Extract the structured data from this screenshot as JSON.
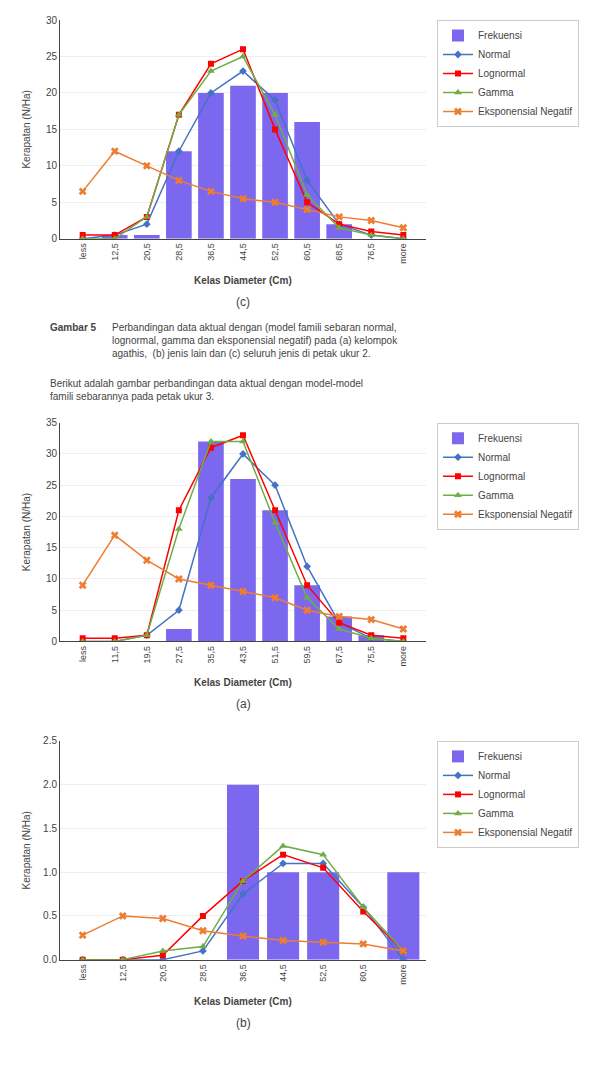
{
  "chart_data": [
    {
      "type": "bar",
      "title": "(c)",
      "xlabel": "Kelas Diameter (Cm)",
      "ylabel": "Kerapatan (N/Ha)",
      "categories": [
        "less",
        "12,5",
        "20,5",
        "28,5",
        "36,5",
        "44,5",
        "52,5",
        "60,5",
        "68,5",
        "76,5",
        "more"
      ],
      "series": [
        {
          "name": "Frekuensi",
          "type": "bar",
          "color": "#7B68EE",
          "values": [
            0,
            0.5,
            0.5,
            12,
            20,
            21,
            20,
            16,
            2,
            0,
            0
          ]
        },
        {
          "name": "Normal",
          "type": "line",
          "color": "#4472C4",
          "marker": "diamond",
          "values": [
            0,
            0.5,
            2,
            12,
            20,
            23,
            19,
            8,
            2,
            0.5,
            0
          ]
        },
        {
          "name": "Lognormal",
          "type": "line",
          "color": "#FF0000",
          "marker": "square",
          "values": [
            0.5,
            0.5,
            3,
            17,
            24,
            26,
            15,
            5,
            2,
            1,
            0.5
          ]
        },
        {
          "name": "Gamma",
          "type": "line",
          "color": "#70AD47",
          "marker": "triangle",
          "values": [
            0,
            0,
            3,
            17,
            23,
            25,
            17,
            6,
            1.5,
            0.5,
            0
          ]
        },
        {
          "name": "Eksponensial Negatif",
          "type": "line",
          "color": "#ED7D31",
          "marker": "x",
          "values": [
            6.5,
            12,
            10,
            8,
            6.5,
            5.5,
            5,
            4,
            3,
            2.5,
            1.5
          ]
        }
      ],
      "ylim": [
        0,
        30
      ],
      "yticks": [
        0,
        5,
        10,
        15,
        20,
        25,
        30
      ],
      "grid": "y",
      "legend": "right",
      "annotations": [
        "Gambar 5",
        "Perbandingan data aktual dengan (model famili sebaran normal,\nlognormal, gamma dan eksponensial negatif) pada (a) kelompok\nagathis,  (b) jenis lain dan (c) seluruh jenis di petak ukur 2.",
        "Berikut adalah gambar perbandingan data aktual dengan model-model\nfamili sebarannya pada petak ukur 3."
      ]
    },
    {
      "type": "bar",
      "title": "(a)",
      "xlabel": "Kelas Diameter (Cm)",
      "ylabel": "Kerapatan (N/Ha)",
      "categories": [
        "less",
        "11,5",
        "19,5",
        "27,5",
        "35,5",
        "43,5",
        "51,5",
        "59,5",
        "67,5",
        "75,5",
        "more"
      ],
      "series": [
        {
          "name": "Frekuensi",
          "type": "bar",
          "color": "#7B68EE",
          "values": [
            0,
            0,
            0,
            2,
            32,
            26,
            21,
            9,
            4,
            1,
            0
          ]
        },
        {
          "name": "Normal",
          "type": "line",
          "color": "#4472C4",
          "marker": "diamond",
          "values": [
            0,
            0,
            1,
            5,
            23,
            30,
            25,
            12,
            3,
            0.5,
            0
          ]
        },
        {
          "name": "Lognormal",
          "type": "line",
          "color": "#FF0000",
          "marker": "square",
          "values": [
            0.5,
            0.5,
            1,
            21,
            31,
            33,
            21,
            9,
            3,
            1,
            0.5
          ]
        },
        {
          "name": "Gamma",
          "type": "line",
          "color": "#70AD47",
          "marker": "triangle",
          "values": [
            0,
            0,
            1,
            18,
            32,
            32,
            19,
            7,
            2,
            0.5,
            0
          ]
        },
        {
          "name": "Eksponensial Negatif",
          "type": "line",
          "color": "#ED7D31",
          "marker": "x",
          "values": [
            9,
            17,
            13,
            10,
            9,
            8,
            7,
            5,
            4,
            3.5,
            2
          ]
        }
      ],
      "ylim": [
        0,
        35
      ],
      "yticks": [
        0,
        5,
        10,
        15,
        20,
        25,
        30,
        35
      ],
      "grid": "y",
      "legend": "right"
    },
    {
      "type": "bar",
      "title": "(b)",
      "xlabel": "Kelas Diameter (Cm)",
      "ylabel": "Kerapatan (N/Ha)",
      "categories": [
        "less",
        "12,5",
        "20,5",
        "28,5",
        "36,5",
        "44,5",
        "52,5",
        "60,5",
        "more"
      ],
      "series": [
        {
          "name": "Frekuensi",
          "type": "bar",
          "color": "#7B68EE",
          "values": [
            0,
            0,
            0,
            0,
            2,
            1,
            1,
            0,
            1
          ]
        },
        {
          "name": "Normal",
          "type": "line",
          "color": "#4472C4",
          "marker": "diamond",
          "values": [
            0,
            0,
            0,
            0.1,
            0.75,
            1.1,
            1.1,
            0.6,
            0
          ]
        },
        {
          "name": "Lognormal",
          "type": "line",
          "color": "#FF0000",
          "marker": "square",
          "values": [
            0,
            0,
            0.05,
            0.5,
            0.9,
            1.2,
            1.05,
            0.55,
            0.1
          ]
        },
        {
          "name": "Gamma",
          "type": "line",
          "color": "#70AD47",
          "marker": "triangle",
          "values": [
            0,
            0,
            0.1,
            0.15,
            0.9,
            1.3,
            1.2,
            0.6,
            0.1
          ]
        },
        {
          "name": "Eksponensial Negatif",
          "type": "line",
          "color": "#ED7D31",
          "marker": "x",
          "values": [
            0.28,
            0.5,
            0.47,
            0.33,
            0.27,
            0.22,
            0.2,
            0.18,
            0.1
          ]
        }
      ],
      "ylim": [
        0,
        2.5
      ],
      "yticks": [
        {
          "value": 0,
          "label": "0.0"
        },
        {
          "value": 0.5,
          "label": "0.5"
        },
        {
          "value": 1,
          "label": "1.0"
        },
        {
          "value": 1.5,
          "label": "1.5"
        },
        {
          "value": 2,
          "label": "2.0"
        },
        {
          "value": 2.5,
          "label": "2.5"
        }
      ],
      "grid": "y",
      "legend": "right"
    }
  ]
}
